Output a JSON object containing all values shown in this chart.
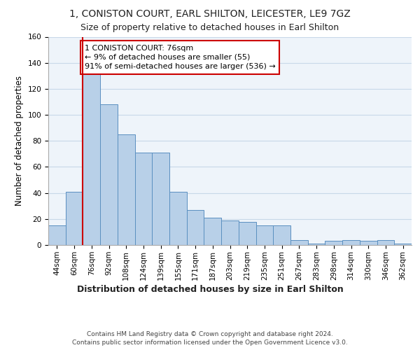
{
  "title_line1": "1, CONISTON COURT, EARL SHILTON, LEICESTER, LE9 7GZ",
  "title_line2": "Size of property relative to detached houses in Earl Shilton",
  "xlabel": "Distribution of detached houses by size in Earl Shilton",
  "ylabel": "Number of detached properties",
  "categories": [
    "44sqm",
    "60sqm",
    "76sqm",
    "92sqm",
    "108sqm",
    "124sqm",
    "139sqm",
    "155sqm",
    "171sqm",
    "187sqm",
    "203sqm",
    "219sqm",
    "235sqm",
    "251sqm",
    "267sqm",
    "283sqm",
    "298sqm",
    "314sqm",
    "330sqm",
    "346sqm",
    "362sqm"
  ],
  "values": [
    15,
    41,
    133,
    108,
    85,
    71,
    71,
    41,
    27,
    21,
    19,
    18,
    15,
    15,
    4,
    1,
    3,
    4,
    3,
    4,
    1
  ],
  "bar_color": "#b8d0e8",
  "bar_edge_color": "#5a8fc0",
  "property_line_x": 2,
  "property_line_color": "#cc0000",
  "annotation_text": "1 CONISTON COURT: 76sqm\n← 9% of detached houses are smaller (55)\n91% of semi-detached houses are larger (536) →",
  "annotation_box_color": "#ffffff",
  "annotation_box_edge_color": "#cc0000",
  "ylim": [
    0,
    160
  ],
  "yticks": [
    0,
    20,
    40,
    60,
    80,
    100,
    120,
    140,
    160
  ],
  "grid_color": "#c8d8e8",
  "background_color": "#eef4fa",
  "footer_line1": "Contains HM Land Registry data © Crown copyright and database right 2024.",
  "footer_line2": "Contains public sector information licensed under the Open Government Licence v3.0.",
  "title_fontsize": 10,
  "subtitle_fontsize": 9,
  "tick_fontsize": 7.5,
  "xlabel_fontsize": 9,
  "ylabel_fontsize": 8.5,
  "annotation_fontsize": 8,
  "footer_fontsize": 6.5
}
